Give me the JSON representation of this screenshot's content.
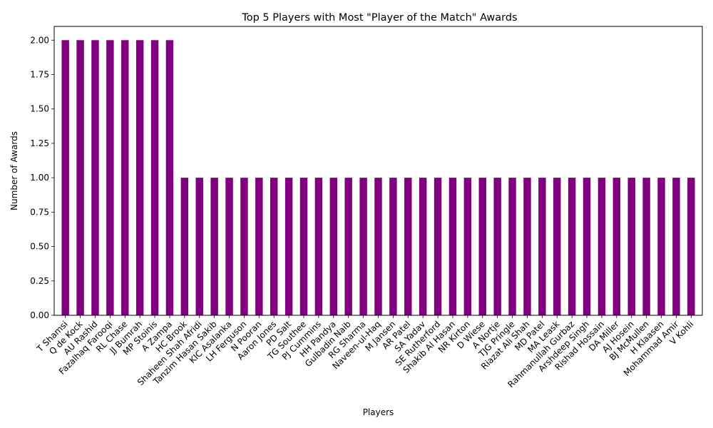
{
  "chart_data": {
    "type": "bar",
    "title": "Top 5 Players with Most \"Player of the Match\" Awards",
    "xlabel": "Players",
    "ylabel": "Number of Awards",
    "ylim": [
      0,
      2.1
    ],
    "yticks": [
      "0.00",
      "0.25",
      "0.50",
      "0.75",
      "1.00",
      "1.25",
      "1.50",
      "1.75",
      "2.00"
    ],
    "grid": false,
    "bar_color": "#800080",
    "categories": [
      "T Shamsi",
      "Q de Kock",
      "AU Rashid",
      "Fazalhaq Farooqi",
      "RL Chase",
      "JJ Bumrah",
      "MP Stoinis",
      "A Zampa",
      "HC Brook",
      "Shaheen Shah Afridi",
      "Tanzim Hasan Sakib",
      "KIC Asalanka",
      "LH Ferguson",
      "N Pooran",
      "Aaron Jones",
      "PD Salt",
      "TG Southee",
      "PJ Cummins",
      "HH Pandya",
      "Gulbadin Naib",
      "RG Sharma",
      "Naveen-ul-Haq",
      "M Jansen",
      "AR Patel",
      "SA Yadav",
      "SE Rutherford",
      "Shakib Al Hasan",
      "NR Kirton",
      "D Wiese",
      "A Nortje",
      "TJG Pringle",
      "Riazat Ali Shah",
      "MD Patel",
      "MA Leask",
      "Rahmanullah Gurbaz",
      "Arshdeep Singh",
      "Rishad Hossain",
      "DA Miller",
      "AJ Hosein",
      "BJ McMullen",
      "H Klaasen",
      "Mohammad Amir",
      "V Kohli"
    ],
    "values": [
      2,
      2,
      2,
      2,
      2,
      2,
      2,
      2,
      1,
      1,
      1,
      1,
      1,
      1,
      1,
      1,
      1,
      1,
      1,
      1,
      1,
      1,
      1,
      1,
      1,
      1,
      1,
      1,
      1,
      1,
      1,
      1,
      1,
      1,
      1,
      1,
      1,
      1,
      1,
      1,
      1,
      1,
      1
    ]
  }
}
